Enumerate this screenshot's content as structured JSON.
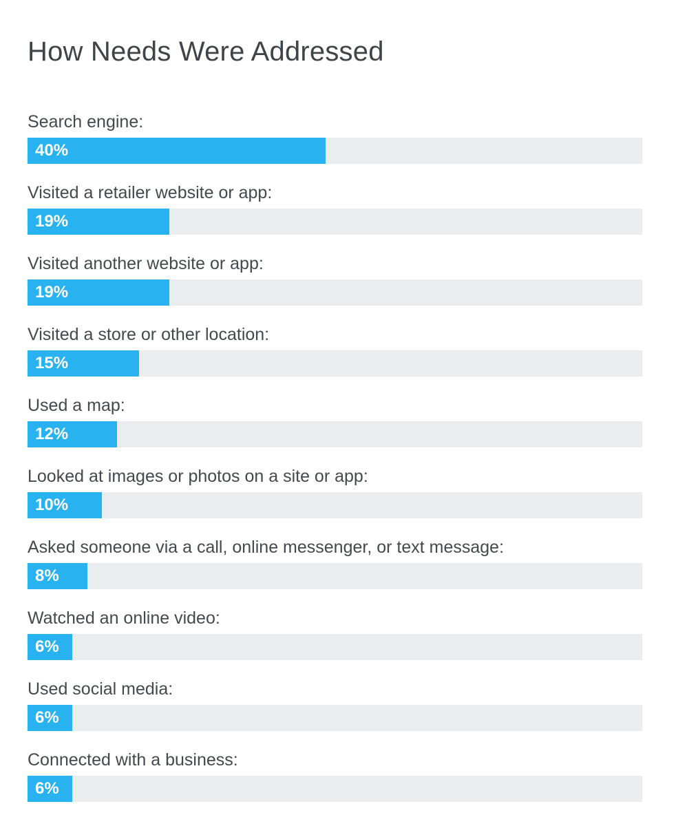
{
  "page": {
    "background": "#ffffff"
  },
  "title": "How Needs Were Addressed",
  "colors": {
    "bar_fill": "#29b2f0",
    "bar_track": "#e9edf0",
    "title_text": "#3f4448",
    "label_text": "#45494e",
    "value_text": "#ffffff"
  },
  "chart_data": {
    "type": "bar",
    "orientation": "horizontal",
    "title": "How Needs Were Addressed",
    "categories": [
      "Search engine:",
      "Visited a retailer website or app:",
      "Visited another website or app:",
      "Visited a store or other location:",
      "Used a map:",
      "Looked at images or photos on a site or app:",
      "Asked someone via a call, online messenger, or text message:",
      "Watched an online video:",
      "Used social media:",
      "Connected with a business:"
    ],
    "values": [
      40,
      19,
      19,
      15,
      12,
      10,
      8,
      6,
      6,
      6
    ],
    "value_labels": [
      "40%",
      "19%",
      "19%",
      "15%",
      "12%",
      "10%",
      "8%",
      "6%",
      "6%",
      "6%"
    ],
    "unit": "%",
    "xlabel": "",
    "ylabel": "",
    "xlim": [
      0,
      82.5
    ],
    "grid": false,
    "legend": false,
    "value_label_position": "inside-left"
  }
}
